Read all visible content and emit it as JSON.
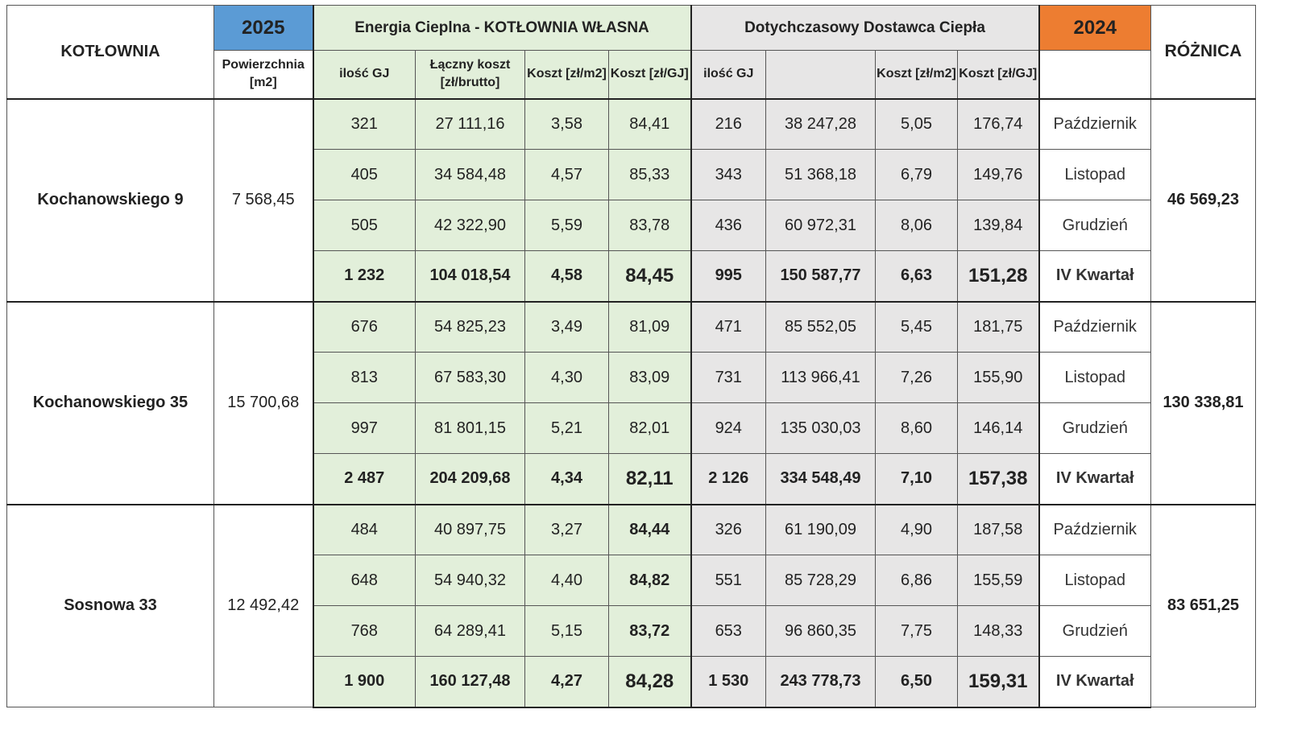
{
  "header": {
    "kotlownia": "KOTŁOWNIA",
    "year_2025": "2025",
    "own_group": "Energia Cieplna - KOTŁOWNIA WŁASNA",
    "supplier_group": "Dotychczasowy Dostawca Ciepła",
    "year_2024": "2024",
    "roznica": "RÓŻNICA",
    "powierzchnia": "Powierzchnia [m2]",
    "own_cols": [
      "ilość GJ",
      "Łączny koszt [zł/brutto]",
      "Koszt [zł/m2]",
      "Koszt [zł/GJ]"
    ],
    "supplier_cols": [
      "ilość GJ",
      "",
      "Koszt [zł/m2]",
      "Koszt [zł/GJ]"
    ],
    "month_col": ""
  },
  "colors": {
    "year_2025": "#5b9bd5",
    "year_2024": "#ed7d31",
    "own": "#e2efda",
    "supplier": "#e7e6e6"
  },
  "groups": [
    {
      "name": "Kochanowskiego 9",
      "area": "7 568,45",
      "difference": "46 569,23",
      "difference_bold": true,
      "rows": [
        {
          "own": [
            "321",
            "27 111,16",
            "3,58",
            "84,41"
          ],
          "sup": [
            "216",
            "38 247,28",
            "5,05",
            "176,74"
          ],
          "month": "Październik"
        },
        {
          "own": [
            "405",
            "34 584,48",
            "4,57",
            "85,33"
          ],
          "sup": [
            "343",
            "51 368,18",
            "6,79",
            "149,76"
          ],
          "month": "Listopad"
        },
        {
          "own": [
            "505",
            "42 322,90",
            "5,59",
            "83,78"
          ],
          "sup": [
            "436",
            "60 972,31",
            "8,06",
            "139,84"
          ],
          "month": "Grudzień"
        },
        {
          "own": [
            "1 232",
            "104 018,54",
            "4,58",
            "84,45"
          ],
          "sup": [
            "995",
            "150 587,77",
            "6,63",
            "151,28"
          ],
          "month": "IV Kwartał",
          "total": true
        }
      ]
    },
    {
      "name": "Kochanowskiego 35",
      "area": "15 700,68",
      "difference": "130 338,81",
      "difference_bold": true,
      "rows": [
        {
          "own": [
            "676",
            "54 825,23",
            "3,49",
            "81,09"
          ],
          "sup": [
            "471",
            "85 552,05",
            "5,45",
            "181,75"
          ],
          "month": "Październik"
        },
        {
          "own": [
            "813",
            "67 583,30",
            "4,30",
            "83,09"
          ],
          "sup": [
            "731",
            "113 966,41",
            "7,26",
            "155,90"
          ],
          "month": "Listopad"
        },
        {
          "own": [
            "997",
            "81 801,15",
            "5,21",
            "82,01"
          ],
          "sup": [
            "924",
            "135 030,03",
            "8,60",
            "146,14"
          ],
          "month": "Grudzień"
        },
        {
          "own": [
            "2 487",
            "204 209,68",
            "4,34",
            "82,11"
          ],
          "sup": [
            "2 126",
            "334 548,49",
            "7,10",
            "157,38"
          ],
          "month": "IV Kwartał",
          "total": true
        }
      ]
    },
    {
      "name": "Sosnowa 33",
      "area": "12 492,42",
      "difference": "83 651,25",
      "difference_bold": true,
      "own_gj_bold": true,
      "rows": [
        {
          "own": [
            "484",
            "40 897,75",
            "3,27",
            "84,44"
          ],
          "sup": [
            "326",
            "61 190,09",
            "4,90",
            "187,58"
          ],
          "month": "Październik"
        },
        {
          "own": [
            "648",
            "54 940,32",
            "4,40",
            "84,82"
          ],
          "sup": [
            "551",
            "85 728,29",
            "6,86",
            "155,59"
          ],
          "month": "Listopad"
        },
        {
          "own": [
            "768",
            "64 289,41",
            "5,15",
            "83,72"
          ],
          "sup": [
            "653",
            "96 860,35",
            "7,75",
            "148,33"
          ],
          "month": "Grudzień"
        },
        {
          "own": [
            "1 900",
            "160 127,48",
            "4,27",
            "84,28"
          ],
          "sup": [
            "1 530",
            "243 778,73",
            "6,50",
            "159,31"
          ],
          "month": "IV Kwartał",
          "total": true
        }
      ]
    }
  ]
}
